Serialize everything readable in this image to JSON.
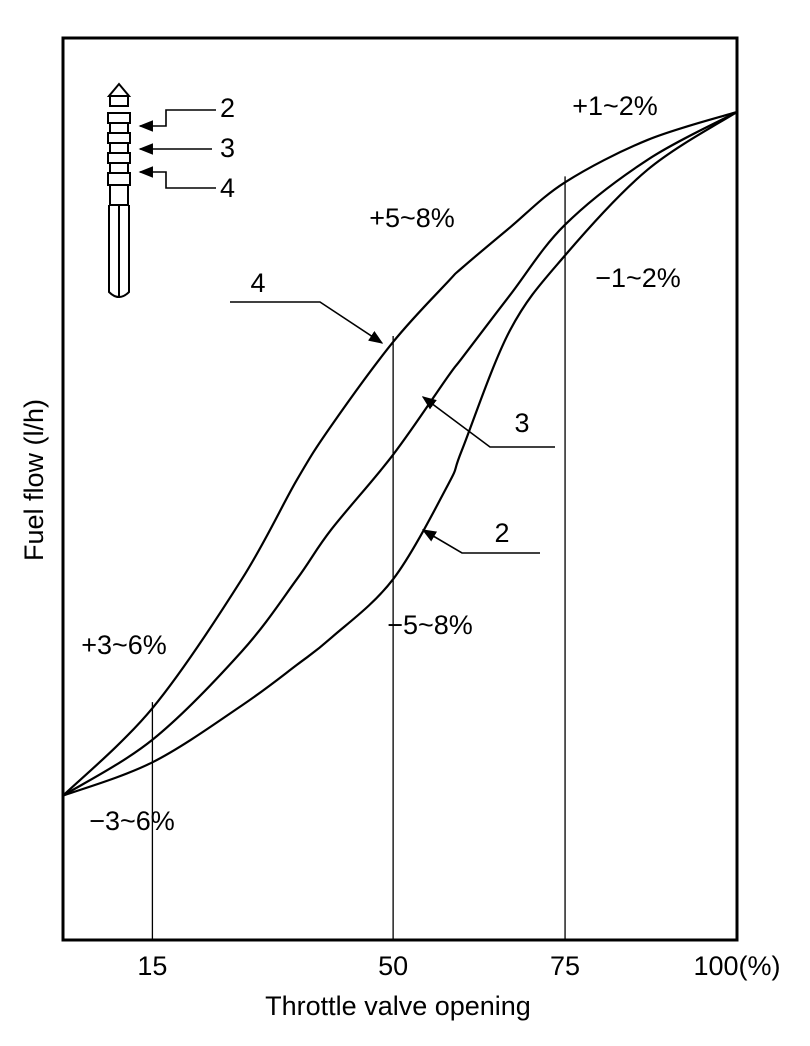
{
  "chart_data": {
    "type": "line",
    "x_label": "Throttle valve opening",
    "y_label": "Fuel flow (l/h)",
    "x": [
      2,
      15,
      28,
      36,
      41,
      50,
      58,
      60,
      67,
      75,
      87,
      100
    ],
    "series": [
      {
        "name": "4",
        "color": "#000000",
        "values": [
          16,
          25.7,
          40,
          51,
          57,
          66.3,
          73,
          74.5,
          79,
          84,
          88.7,
          91.8
        ]
      },
      {
        "name": "3",
        "color": "#000000",
        "values": [
          16,
          22.2,
          32,
          40,
          45.5,
          53.8,
          62.5,
          64.5,
          71.5,
          79.3,
          86.5,
          91.8
        ]
      },
      {
        "name": "2",
        "color": "#000000",
        "values": [
          16,
          19.7,
          26,
          30.5,
          33.5,
          40,
          50.5,
          54.3,
          67.6,
          75.9,
          85.4,
          91.8
        ]
      }
    ],
    "xlim": [
      2,
      100
    ],
    "ylim": [
      0,
      100
    ],
    "xticks": [
      15,
      50,
      75,
      {
        "value": 100,
        "label": "100(%)"
      }
    ],
    "annotations": [
      "+1~2%",
      "+5~8%",
      "−1~2%",
      "+3~6%",
      "−3~6%",
      "−5~8%"
    ]
  }
}
